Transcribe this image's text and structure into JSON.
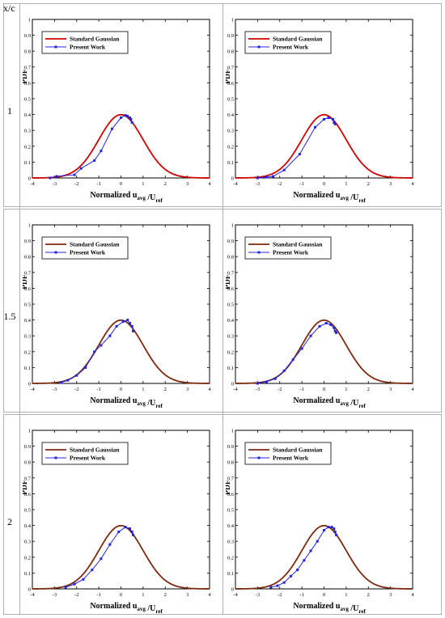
{
  "header": {
    "row_label_title": "x/c"
  },
  "rows": [
    {
      "label": "1"
    },
    {
      "label": "1.5"
    },
    {
      "label": "2"
    }
  ],
  "axes": {
    "xlabel_main": "Normalized  u",
    "xlabel_sub": "avg",
    "xlabel_mid": " /U",
    "xlabel_sub2": "ref",
    "ylabel": "PDF",
    "xlim": [
      -4,
      4
    ],
    "ylim": [
      0,
      1
    ],
    "xticks": [
      "-4",
      "-3",
      "-2",
      "-1",
      "0",
      "1",
      "2",
      "3",
      "4"
    ],
    "yticks": [
      "0",
      "0.1",
      "0.2",
      "0.3",
      "0.4",
      "0.5",
      "0.6",
      "0.7",
      "0.8",
      "0.9",
      "1"
    ]
  },
  "colors": {
    "gaussian_red": "#cc0000",
    "gaussian_brown": "#7b2a10",
    "present_work": "#2323dd"
  },
  "chart_data": [
    {
      "type": "line",
      "row": 0,
      "col": 0,
      "legend": "top-left",
      "series": [
        {
          "name": "Standard Gaussian",
          "color": "#cc0000",
          "kind": "gaussian",
          "mean": 0,
          "std": 1
        },
        {
          "name": "Present Work",
          "color": "#2323dd",
          "kind": "points",
          "x": [
            -3.2,
            -2.9,
            -2.1,
            -1.8,
            -1.2,
            -0.9,
            -0.4,
            0.0,
            0.2,
            0.3,
            0.4,
            0.45,
            0.5
          ],
          "y": [
            0.0,
            0.01,
            0.02,
            0.06,
            0.11,
            0.17,
            0.31,
            0.38,
            0.395,
            0.39,
            0.38,
            0.37,
            0.35
          ]
        }
      ]
    },
    {
      "type": "line",
      "row": 0,
      "col": 1,
      "legend": "top-left",
      "series": [
        {
          "name": "Standard Gaussian",
          "color": "#cc0000",
          "kind": "gaussian",
          "mean": 0,
          "std": 1
        },
        {
          "name": "Present Work",
          "color": "#2323dd",
          "kind": "points",
          "x": [
            -3.0,
            -2.6,
            -2.3,
            -1.8,
            -1.1,
            -0.4,
            0.0,
            0.2,
            0.4,
            0.45,
            0.5
          ],
          "y": [
            0.0,
            0.005,
            0.01,
            0.05,
            0.15,
            0.32,
            0.37,
            0.38,
            0.37,
            0.35,
            0.34
          ]
        }
      ]
    },
    {
      "type": "line",
      "row": 1,
      "col": 0,
      "legend": "top-left",
      "series": [
        {
          "name": "Standard Gaussian",
          "color": "#7b2a10",
          "kind": "gaussian",
          "mean": 0,
          "std": 1
        },
        {
          "name": "Present Work",
          "color": "#2323dd",
          "kind": "points",
          "x": [
            -2.7,
            -2.4,
            -2.0,
            -1.6,
            -1.2,
            -0.9,
            -0.5,
            -0.2,
            0.1,
            0.3,
            0.4,
            0.5,
            0.55
          ],
          "y": [
            0.005,
            0.02,
            0.05,
            0.1,
            0.2,
            0.24,
            0.3,
            0.36,
            0.39,
            0.4,
            0.38,
            0.36,
            0.33
          ]
        }
      ]
    },
    {
      "type": "line",
      "row": 1,
      "col": 1,
      "legend": "top-left",
      "series": [
        {
          "name": "Standard Gaussian",
          "color": "#7b2a10",
          "kind": "gaussian",
          "mean": 0,
          "std": 1
        },
        {
          "name": "Present Work",
          "color": "#2323dd",
          "kind": "points",
          "x": [
            -3.0,
            -2.6,
            -2.2,
            -1.8,
            -1.4,
            -1.0,
            -0.6,
            -0.2,
            0.1,
            0.3,
            0.45,
            0.5,
            0.55
          ],
          "y": [
            0.0,
            0.01,
            0.03,
            0.08,
            0.15,
            0.22,
            0.3,
            0.36,
            0.38,
            0.37,
            0.35,
            0.33,
            0.32
          ]
        }
      ]
    },
    {
      "type": "line",
      "row": 2,
      "col": 0,
      "legend": "top-left",
      "series": [
        {
          "name": "Standard Gaussian",
          "color": "#7b2a10",
          "kind": "gaussian",
          "mean": 0,
          "std": 1
        },
        {
          "name": "Present Work",
          "color": "#2323dd",
          "kind": "points",
          "x": [
            -2.5,
            -2.1,
            -1.7,
            -1.3,
            -0.9,
            -0.5,
            -0.1,
            0.2,
            0.4,
            0.5,
            0.55
          ],
          "y": [
            0.01,
            0.03,
            0.06,
            0.12,
            0.19,
            0.28,
            0.36,
            0.39,
            0.38,
            0.36,
            0.34
          ]
        }
      ]
    },
    {
      "type": "line",
      "row": 2,
      "col": 1,
      "legend": "top-left",
      "series": [
        {
          "name": "Standard Gaussian",
          "color": "#7b2a10",
          "kind": "gaussian",
          "mean": 0,
          "std": 1
        },
        {
          "name": "Present Work",
          "color": "#2323dd",
          "kind": "points",
          "x": [
            -2.4,
            -2.1,
            -1.8,
            -1.5,
            -1.2,
            -0.9,
            -0.6,
            -0.3,
            0.0,
            0.2,
            0.35,
            0.45,
            0.5,
            0.55
          ],
          "y": [
            0.01,
            0.02,
            0.04,
            0.08,
            0.12,
            0.18,
            0.24,
            0.3,
            0.37,
            0.39,
            0.39,
            0.38,
            0.36,
            0.34
          ]
        }
      ]
    }
  ]
}
